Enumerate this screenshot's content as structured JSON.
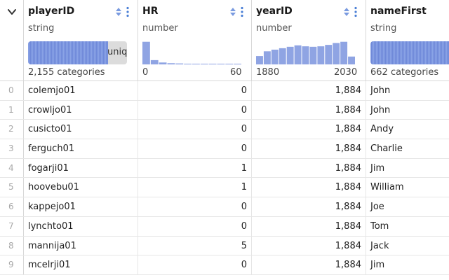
{
  "columns": [
    {
      "name": "playerID",
      "type": "string",
      "summary": "2,155 categories",
      "bar_label": "uniq",
      "unique_fill": 0.81
    },
    {
      "name": "HR",
      "type": "number",
      "range_min": "0",
      "range_max": "60",
      "hist": [
        0.95,
        0.18,
        0.08,
        0.05,
        0.04,
        0.03,
        0.02,
        0.02,
        0.01,
        0.01,
        0.01,
        0.01
      ]
    },
    {
      "name": "yearID",
      "type": "number",
      "range_min": "1880",
      "range_max": "2030",
      "hist": [
        0.35,
        0.55,
        0.62,
        0.68,
        0.74,
        0.8,
        0.76,
        0.74,
        0.76,
        0.82,
        0.9,
        0.95,
        0.33
      ]
    },
    {
      "name": "nameFirst",
      "type": "string",
      "summary": "662 categories"
    }
  ],
  "rows": [
    {
      "index": "0",
      "playerID": "colemjo01",
      "HR": "0",
      "yearID": "1,884",
      "nameFirst": "John"
    },
    {
      "index": "1",
      "playerID": "crowljo01",
      "HR": "0",
      "yearID": "1,884",
      "nameFirst": "John"
    },
    {
      "index": "2",
      "playerID": "cusicto01",
      "HR": "0",
      "yearID": "1,884",
      "nameFirst": "Andy"
    },
    {
      "index": "3",
      "playerID": "ferguch01",
      "HR": "0",
      "yearID": "1,884",
      "nameFirst": "Charlie"
    },
    {
      "index": "4",
      "playerID": "fogarji01",
      "HR": "1",
      "yearID": "1,884",
      "nameFirst": "Jim"
    },
    {
      "index": "5",
      "playerID": "hoovebu01",
      "HR": "1",
      "yearID": "1,884",
      "nameFirst": "William"
    },
    {
      "index": "6",
      "playerID": "kappejo01",
      "HR": "0",
      "yearID": "1,884",
      "nameFirst": "Joe"
    },
    {
      "index": "7",
      "playerID": "lynchto01",
      "HR": "0",
      "yearID": "1,884",
      "nameFirst": "Tom"
    },
    {
      "index": "8",
      "playerID": "mannija01",
      "HR": "5",
      "yearID": "1,884",
      "nameFirst": "Jack"
    },
    {
      "index": "9",
      "playerID": "mcelrji01",
      "HR": "0",
      "yearID": "1,884",
      "nameFirst": "Jim"
    }
  ],
  "colors": {
    "bar": "#8fa4e3",
    "accent": "#4a7fd6"
  }
}
